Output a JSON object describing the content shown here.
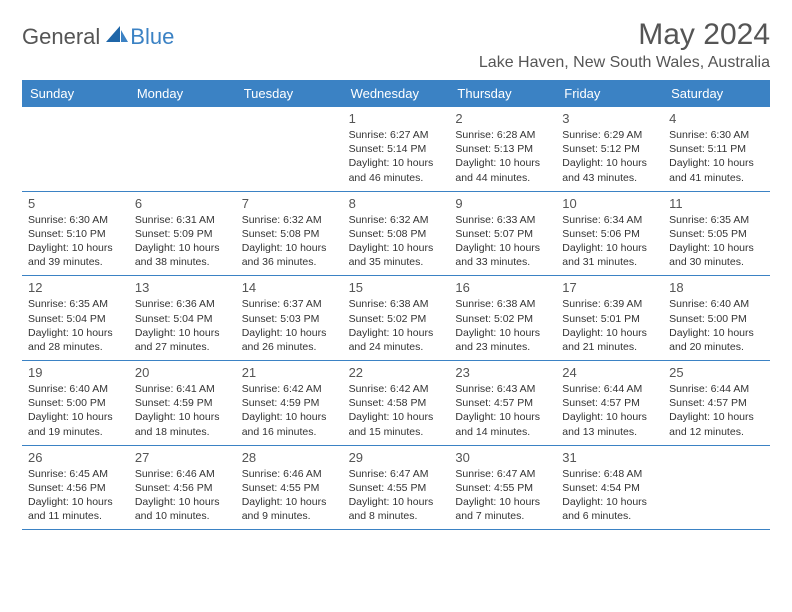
{
  "logo": {
    "part1": "General",
    "part2": "Blue"
  },
  "title": "May 2024",
  "location": "Lake Haven, New South Wales, Australia",
  "header_bg": "#3b82c4",
  "header_fg": "#ffffff",
  "border_color": "#3b82c4",
  "day_names": [
    "Sunday",
    "Monday",
    "Tuesday",
    "Wednesday",
    "Thursday",
    "Friday",
    "Saturday"
  ],
  "weeks": [
    [
      {
        "n": "",
        "sr": "",
        "ss": "",
        "dl": ""
      },
      {
        "n": "",
        "sr": "",
        "ss": "",
        "dl": ""
      },
      {
        "n": "",
        "sr": "",
        "ss": "",
        "dl": ""
      },
      {
        "n": "1",
        "sr": "Sunrise: 6:27 AM",
        "ss": "Sunset: 5:14 PM",
        "dl": "Daylight: 10 hours and 46 minutes."
      },
      {
        "n": "2",
        "sr": "Sunrise: 6:28 AM",
        "ss": "Sunset: 5:13 PM",
        "dl": "Daylight: 10 hours and 44 minutes."
      },
      {
        "n": "3",
        "sr": "Sunrise: 6:29 AM",
        "ss": "Sunset: 5:12 PM",
        "dl": "Daylight: 10 hours and 43 minutes."
      },
      {
        "n": "4",
        "sr": "Sunrise: 6:30 AM",
        "ss": "Sunset: 5:11 PM",
        "dl": "Daylight: 10 hours and 41 minutes."
      }
    ],
    [
      {
        "n": "5",
        "sr": "Sunrise: 6:30 AM",
        "ss": "Sunset: 5:10 PM",
        "dl": "Daylight: 10 hours and 39 minutes."
      },
      {
        "n": "6",
        "sr": "Sunrise: 6:31 AM",
        "ss": "Sunset: 5:09 PM",
        "dl": "Daylight: 10 hours and 38 minutes."
      },
      {
        "n": "7",
        "sr": "Sunrise: 6:32 AM",
        "ss": "Sunset: 5:08 PM",
        "dl": "Daylight: 10 hours and 36 minutes."
      },
      {
        "n": "8",
        "sr": "Sunrise: 6:32 AM",
        "ss": "Sunset: 5:08 PM",
        "dl": "Daylight: 10 hours and 35 minutes."
      },
      {
        "n": "9",
        "sr": "Sunrise: 6:33 AM",
        "ss": "Sunset: 5:07 PM",
        "dl": "Daylight: 10 hours and 33 minutes."
      },
      {
        "n": "10",
        "sr": "Sunrise: 6:34 AM",
        "ss": "Sunset: 5:06 PM",
        "dl": "Daylight: 10 hours and 31 minutes."
      },
      {
        "n": "11",
        "sr": "Sunrise: 6:35 AM",
        "ss": "Sunset: 5:05 PM",
        "dl": "Daylight: 10 hours and 30 minutes."
      }
    ],
    [
      {
        "n": "12",
        "sr": "Sunrise: 6:35 AM",
        "ss": "Sunset: 5:04 PM",
        "dl": "Daylight: 10 hours and 28 minutes."
      },
      {
        "n": "13",
        "sr": "Sunrise: 6:36 AM",
        "ss": "Sunset: 5:04 PM",
        "dl": "Daylight: 10 hours and 27 minutes."
      },
      {
        "n": "14",
        "sr": "Sunrise: 6:37 AM",
        "ss": "Sunset: 5:03 PM",
        "dl": "Daylight: 10 hours and 26 minutes."
      },
      {
        "n": "15",
        "sr": "Sunrise: 6:38 AM",
        "ss": "Sunset: 5:02 PM",
        "dl": "Daylight: 10 hours and 24 minutes."
      },
      {
        "n": "16",
        "sr": "Sunrise: 6:38 AM",
        "ss": "Sunset: 5:02 PM",
        "dl": "Daylight: 10 hours and 23 minutes."
      },
      {
        "n": "17",
        "sr": "Sunrise: 6:39 AM",
        "ss": "Sunset: 5:01 PM",
        "dl": "Daylight: 10 hours and 21 minutes."
      },
      {
        "n": "18",
        "sr": "Sunrise: 6:40 AM",
        "ss": "Sunset: 5:00 PM",
        "dl": "Daylight: 10 hours and 20 minutes."
      }
    ],
    [
      {
        "n": "19",
        "sr": "Sunrise: 6:40 AM",
        "ss": "Sunset: 5:00 PM",
        "dl": "Daylight: 10 hours and 19 minutes."
      },
      {
        "n": "20",
        "sr": "Sunrise: 6:41 AM",
        "ss": "Sunset: 4:59 PM",
        "dl": "Daylight: 10 hours and 18 minutes."
      },
      {
        "n": "21",
        "sr": "Sunrise: 6:42 AM",
        "ss": "Sunset: 4:59 PM",
        "dl": "Daylight: 10 hours and 16 minutes."
      },
      {
        "n": "22",
        "sr": "Sunrise: 6:42 AM",
        "ss": "Sunset: 4:58 PM",
        "dl": "Daylight: 10 hours and 15 minutes."
      },
      {
        "n": "23",
        "sr": "Sunrise: 6:43 AM",
        "ss": "Sunset: 4:57 PM",
        "dl": "Daylight: 10 hours and 14 minutes."
      },
      {
        "n": "24",
        "sr": "Sunrise: 6:44 AM",
        "ss": "Sunset: 4:57 PM",
        "dl": "Daylight: 10 hours and 13 minutes."
      },
      {
        "n": "25",
        "sr": "Sunrise: 6:44 AM",
        "ss": "Sunset: 4:57 PM",
        "dl": "Daylight: 10 hours and 12 minutes."
      }
    ],
    [
      {
        "n": "26",
        "sr": "Sunrise: 6:45 AM",
        "ss": "Sunset: 4:56 PM",
        "dl": "Daylight: 10 hours and 11 minutes."
      },
      {
        "n": "27",
        "sr": "Sunrise: 6:46 AM",
        "ss": "Sunset: 4:56 PM",
        "dl": "Daylight: 10 hours and 10 minutes."
      },
      {
        "n": "28",
        "sr": "Sunrise: 6:46 AM",
        "ss": "Sunset: 4:55 PM",
        "dl": "Daylight: 10 hours and 9 minutes."
      },
      {
        "n": "29",
        "sr": "Sunrise: 6:47 AM",
        "ss": "Sunset: 4:55 PM",
        "dl": "Daylight: 10 hours and 8 minutes."
      },
      {
        "n": "30",
        "sr": "Sunrise: 6:47 AM",
        "ss": "Sunset: 4:55 PM",
        "dl": "Daylight: 10 hours and 7 minutes."
      },
      {
        "n": "31",
        "sr": "Sunrise: 6:48 AM",
        "ss": "Sunset: 4:54 PM",
        "dl": "Daylight: 10 hours and 6 minutes."
      },
      {
        "n": "",
        "sr": "",
        "ss": "",
        "dl": ""
      }
    ]
  ]
}
